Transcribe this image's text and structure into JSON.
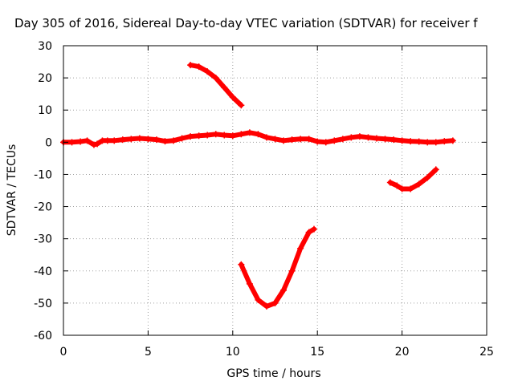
{
  "chart_data": {
    "type": "scatter",
    "title": "Day 305 of 2016, Sidereal Day-to-day VTEC variation (SDTVAR) for receiver f",
    "xlabel": "GPS time / hours",
    "ylabel": "SDTVAR / TECUs",
    "xlim": [
      0,
      25
    ],
    "ylim": [
      -60,
      30
    ],
    "xticks": [
      0,
      5,
      10,
      15,
      20,
      25
    ],
    "yticks": [
      30,
      20,
      10,
      0,
      -10,
      -20,
      -30,
      -40,
      -50,
      -60
    ],
    "grid": true,
    "legend": "none",
    "marker": "plus",
    "color": "#ff0000",
    "series": [
      {
        "x": [
          0,
          0.5,
          1.0,
          1.4,
          1.8,
          2.0,
          2.3,
          2.6,
          3.0,
          3.5,
          4.0,
          4.5,
          5.0,
          5.5,
          6.0,
          6.5,
          7.0,
          7.5,
          8.0,
          8.5,
          9.0,
          9.5,
          10.0,
          10.5,
          11.0,
          11.5,
          12.0,
          12.5,
          13.0,
          13.5,
          14.0,
          14.5,
          15.0,
          15.5,
          16.0,
          16.5,
          17.0,
          17.5,
          18.0,
          18.5,
          19.0,
          19.5,
          20.0,
          20.5,
          21.0,
          21.5,
          22.0,
          22.5,
          23.0
        ],
        "y": [
          0,
          0,
          0.2,
          0.5,
          -0.8,
          -0.5,
          0.5,
          0.5,
          0.5,
          0.8,
          1.0,
          1.2,
          1.0,
          0.8,
          0.3,
          0.5,
          1.2,
          1.8,
          2.0,
          2.2,
          2.5,
          2.2,
          2.0,
          2.5,
          3.0,
          2.5,
          1.5,
          1.0,
          0.5,
          0.8,
          1.0,
          1.0,
          0.2,
          0,
          0.5,
          1.0,
          1.5,
          1.8,
          1.5,
          1.2,
          1.0,
          0.8,
          0.5,
          0.3,
          0.2,
          0,
          0,
          0.3,
          0.5
        ]
      },
      {
        "x": [
          7.5,
          8.0,
          8.5,
          9.0,
          9.5,
          10.0,
          10.5
        ],
        "y": [
          24,
          23.5,
          22,
          20,
          17,
          14,
          11.5
        ]
      },
      {
        "x": [
          10.5,
          11.0,
          11.5,
          12.0,
          12.5,
          13.0,
          13.5,
          14.0,
          14.5,
          14.8
        ],
        "y": [
          -38,
          -44,
          -49,
          -51,
          -50,
          -46,
          -40,
          -33,
          -28,
          -27
        ]
      },
      {
        "x": [
          19.3,
          19.7,
          20.0,
          20.5,
          21.0,
          21.5,
          22.0
        ],
        "y": [
          -12.5,
          -13.5,
          -14.5,
          -14.5,
          -13,
          -11,
          -8.5
        ]
      }
    ]
  }
}
